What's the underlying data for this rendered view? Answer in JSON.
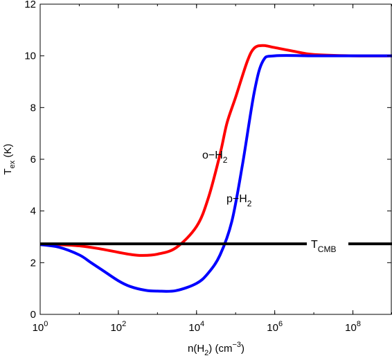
{
  "chart_data": {
    "type": "line",
    "title": "",
    "xlabel": {
      "base": "n(H",
      "sub": "2",
      "mid": ") (cm",
      "sup": "−3",
      "end": ")"
    },
    "ylabel": {
      "base": "T",
      "sub": "ex",
      "end": " (K)"
    },
    "xscale": "log",
    "xlim": [
      1,
      1000000000
    ],
    "ylim": [
      0,
      12
    ],
    "xticks": [
      {
        "value": 1,
        "base": "10",
        "exp": "0"
      },
      {
        "value": 100,
        "base": "10",
        "exp": "2"
      },
      {
        "value": 10000,
        "base": "10",
        "exp": "4"
      },
      {
        "value": 1000000,
        "base": "10",
        "exp": "6"
      },
      {
        "value": 100000000,
        "base": "10",
        "exp": "8"
      }
    ],
    "yticks": [
      "0",
      "2",
      "4",
      "6",
      "8",
      "10",
      "12"
    ],
    "grid": false,
    "series": [
      {
        "name": "o-H2",
        "color": "#ff0000",
        "x": [
          1,
          3,
          10,
          30,
          100,
          200,
          400,
          1000,
          3000,
          10000,
          20000,
          40000,
          60000,
          100000,
          200000,
          300000,
          500000,
          1000000,
          3000000,
          10000000,
          100000000,
          1000000000
        ],
        "y": [
          2.72,
          2.7,
          2.65,
          2.55,
          2.4,
          2.32,
          2.28,
          2.33,
          2.58,
          3.4,
          4.5,
          6.2,
          7.4,
          8.4,
          9.8,
          10.3,
          10.4,
          10.32,
          10.18,
          10.05,
          10.0,
          10.0
        ]
      },
      {
        "name": "p-H2",
        "color": "#0000ff",
        "x": [
          1,
          3,
          10,
          20,
          40,
          100,
          200,
          500,
          1000,
          3000,
          10000,
          20000,
          40000,
          80000,
          150000,
          300000,
          500000,
          1000000,
          10000000,
          100000000,
          1000000000
        ],
        "y": [
          2.7,
          2.6,
          2.3,
          2.0,
          1.7,
          1.3,
          1.08,
          0.93,
          0.9,
          0.92,
          1.2,
          1.6,
          2.3,
          3.6,
          5.8,
          8.6,
          9.8,
          10.0,
          10.0,
          10.0,
          10.0
        ]
      },
      {
        "name": "TCMB",
        "color": "#000000",
        "x": [
          1,
          1000000000
        ],
        "y": [
          2.73,
          2.73
        ]
      }
    ],
    "annotations": [
      {
        "base": "o−H",
        "sub": "2",
        "sup": ""
      },
      {
        "base": "p−H",
        "sub": "2",
        "sup": ""
      },
      {
        "base": "T",
        "sub": "CMB",
        "sup": ""
      }
    ]
  }
}
